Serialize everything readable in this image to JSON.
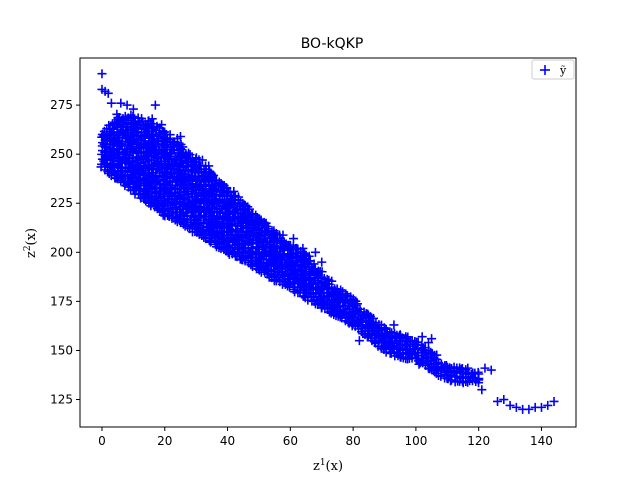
{
  "chart_data": {
    "type": "scatter",
    "title": "BO-kQKP",
    "xlabel_base": "z",
    "xlabel_sup": "1",
    "xlabel_tail": "(x)",
    "ylabel_base": "z",
    "ylabel_sup": "2",
    "ylabel_tail": "(x)",
    "xlim": [
      -7,
      151
    ],
    "ylim": [
      111,
      299
    ],
    "xticks": [
      0,
      20,
      40,
      60,
      80,
      100,
      120,
      140
    ],
    "yticks": [
      125,
      150,
      175,
      200,
      225,
      250,
      275
    ],
    "grid": false,
    "legend": {
      "placement": "top-right",
      "label": "ỹ",
      "marker": "plus"
    },
    "series": [
      {
        "color": "#0000ff",
        "marker": "plus",
        "points": [
          [
            0,
            291
          ],
          [
            0,
            283
          ],
          [
            1,
            282
          ],
          [
            2,
            281
          ],
          [
            3,
            276
          ],
          [
            6,
            276
          ],
          [
            8,
            275
          ],
          [
            10,
            273
          ],
          [
            17,
            275
          ],
          [
            16,
            268
          ],
          [
            19,
            265
          ],
          [
            22,
            254
          ],
          [
            24,
            258
          ],
          [
            25,
            259
          ],
          [
            27,
            248
          ],
          [
            30,
            246
          ],
          [
            32,
            247
          ],
          [
            33,
            244
          ],
          [
            34,
            244
          ],
          [
            35,
            239
          ],
          [
            38,
            235
          ],
          [
            40,
            231
          ],
          [
            42,
            231
          ],
          [
            44,
            225
          ],
          [
            47,
            222
          ],
          [
            48,
            218
          ],
          [
            49,
            213
          ],
          [
            50,
            216
          ],
          [
            52,
            213
          ],
          [
            53,
            210
          ],
          [
            55,
            207
          ],
          [
            57,
            205
          ],
          [
            58,
            203
          ],
          [
            60,
            198
          ],
          [
            61,
            207
          ],
          [
            62,
            202
          ],
          [
            64,
            202
          ],
          [
            66,
            198
          ],
          [
            67,
            190
          ],
          [
            68,
            200
          ],
          [
            70,
            195
          ],
          [
            66,
            190
          ],
          [
            69,
            187
          ],
          [
            71,
            183
          ],
          [
            72,
            178
          ],
          [
            74,
            180
          ],
          [
            76,
            178
          ],
          [
            70,
            173
          ],
          [
            73,
            169
          ],
          [
            76,
            170
          ],
          [
            80,
            165
          ],
          [
            84,
            162
          ],
          [
            82,
            155
          ],
          [
            86,
            155
          ],
          [
            87,
            158
          ],
          [
            88,
            160
          ],
          [
            90,
            158
          ],
          [
            92,
            157
          ],
          [
            93,
            163
          ],
          [
            95,
            158
          ],
          [
            97,
            156
          ],
          [
            99,
            152
          ],
          [
            102,
            157
          ],
          [
            104,
            154
          ],
          [
            105,
            156
          ],
          [
            101,
            143
          ],
          [
            104,
            141
          ],
          [
            106,
            140
          ],
          [
            108,
            140
          ],
          [
            110,
            141
          ],
          [
            112,
            139
          ],
          [
            114,
            140
          ],
          [
            116,
            138
          ],
          [
            118,
            136
          ],
          [
            120,
            138
          ],
          [
            122,
            141
          ],
          [
            124,
            140
          ],
          [
            120,
            135
          ],
          [
            121,
            130
          ],
          [
            126,
            124
          ],
          [
            128,
            125
          ],
          [
            130,
            122
          ],
          [
            132,
            121
          ],
          [
            134,
            120
          ],
          [
            136,
            120
          ],
          [
            138,
            121
          ],
          [
            140,
            121
          ],
          [
            142,
            122
          ],
          [
            144,
            124
          ]
        ],
        "band": [
          [
            0,
            243,
            262
          ],
          [
            5,
            237,
            270
          ],
          [
            10,
            231,
            270
          ],
          [
            15,
            225,
            267
          ],
          [
            20,
            219,
            262
          ],
          [
            25,
            215,
            255
          ],
          [
            30,
            210,
            248
          ],
          [
            35,
            205,
            241
          ],
          [
            40,
            200,
            233
          ],
          [
            45,
            196,
            226
          ],
          [
            50,
            191,
            218
          ],
          [
            55,
            186,
            212
          ],
          [
            60,
            182,
            205
          ],
          [
            65,
            177,
            199
          ],
          [
            70,
            172,
            190
          ],
          [
            75,
            168,
            182
          ],
          [
            80,
            163,
            178
          ],
          [
            85,
            157,
            168
          ],
          [
            90,
            150,
            162
          ],
          [
            95,
            146,
            158
          ],
          [
            100,
            146,
            156
          ],
          [
            105,
            140,
            150
          ],
          [
            110,
            135,
            142
          ],
          [
            115,
            134,
            141
          ],
          [
            120,
            134,
            140
          ]
        ]
      }
    ]
  }
}
